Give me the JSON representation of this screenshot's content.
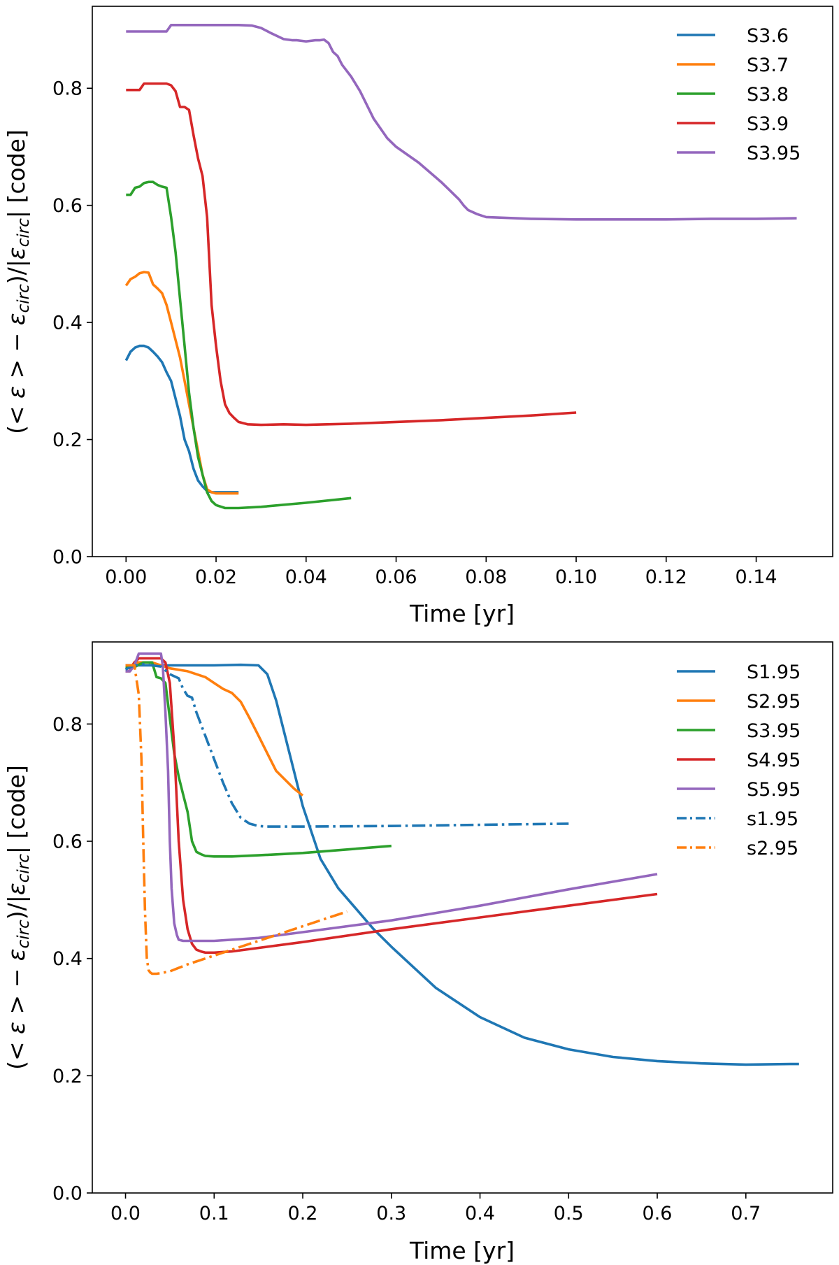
{
  "chart_data": [
    {
      "type": "line",
      "xlabel": "Time [yr]",
      "ylabel": "(< ε > − ε_circ)/|ε_circ| [code]",
      "ylabel_parts": [
        "(< ",
        "ε",
        " > − ",
        "ε",
        "circ",
        ")/|",
        "ε",
        "circ",
        "| [code]"
      ],
      "xlim": [
        -0.0075,
        0.157
      ],
      "ylim": [
        0.0,
        0.94
      ],
      "xticks": [
        0.0,
        0.02,
        0.04,
        0.06,
        0.08,
        0.1,
        0.12,
        0.14
      ],
      "xtick_labels": [
        "0.00",
        "0.02",
        "0.04",
        "0.06",
        "0.08",
        "0.10",
        "0.12",
        "0.14"
      ],
      "yticks": [
        0.0,
        0.2,
        0.4,
        0.6,
        0.8
      ],
      "ytick_labels": [
        "0.0",
        "0.2",
        "0.4",
        "0.6",
        "0.8"
      ],
      "legend_position": "top-right",
      "grid": false,
      "series": [
        {
          "name": "S3.6",
          "color": "#1f77b4",
          "dash": "solid",
          "x": [
            0.0,
            0.001,
            0.002,
            0.003,
            0.004,
            0.005,
            0.006,
            0.007,
            0.008,
            0.009,
            0.01,
            0.011,
            0.012,
            0.013,
            0.014,
            0.015,
            0.016,
            0.017,
            0.018,
            0.019,
            0.02,
            0.022,
            0.025
          ],
          "y": [
            0.335,
            0.35,
            0.357,
            0.36,
            0.36,
            0.357,
            0.35,
            0.342,
            0.332,
            0.315,
            0.3,
            0.27,
            0.24,
            0.2,
            0.18,
            0.15,
            0.13,
            0.12,
            0.112,
            0.11,
            0.11,
            0.11,
            0.11
          ]
        },
        {
          "name": "S3.7",
          "color": "#ff7f0e",
          "dash": "solid",
          "x": [
            0.0,
            0.001,
            0.002,
            0.003,
            0.004,
            0.005,
            0.006,
            0.007,
            0.008,
            0.009,
            0.01,
            0.011,
            0.012,
            0.013,
            0.014,
            0.015,
            0.016,
            0.017,
            0.018,
            0.019,
            0.02,
            0.022,
            0.025
          ],
          "y": [
            0.463,
            0.474,
            0.478,
            0.484,
            0.486,
            0.485,
            0.465,
            0.458,
            0.45,
            0.43,
            0.4,
            0.37,
            0.34,
            0.3,
            0.26,
            0.22,
            0.18,
            0.14,
            0.115,
            0.11,
            0.108,
            0.108,
            0.108
          ]
        },
        {
          "name": "S3.8",
          "color": "#2ca02c",
          "dash": "solid",
          "x": [
            0.0,
            0.001,
            0.002,
            0.003,
            0.004,
            0.005,
            0.006,
            0.007,
            0.008,
            0.009,
            0.01,
            0.011,
            0.012,
            0.013,
            0.014,
            0.015,
            0.016,
            0.017,
            0.018,
            0.019,
            0.02,
            0.022,
            0.025,
            0.03,
            0.04,
            0.05
          ],
          "y": [
            0.618,
            0.618,
            0.63,
            0.632,
            0.638,
            0.64,
            0.64,
            0.635,
            0.632,
            0.63,
            0.58,
            0.52,
            0.44,
            0.36,
            0.28,
            0.22,
            0.17,
            0.14,
            0.11,
            0.095,
            0.088,
            0.083,
            0.083,
            0.085,
            0.092,
            0.1
          ]
        },
        {
          "name": "S3.9",
          "color": "#d62728",
          "dash": "solid",
          "x": [
            0.0,
            0.002,
            0.003,
            0.004,
            0.005,
            0.006,
            0.008,
            0.009,
            0.01,
            0.011,
            0.012,
            0.013,
            0.014,
            0.015,
            0.016,
            0.017,
            0.018,
            0.019,
            0.02,
            0.021,
            0.022,
            0.023,
            0.024,
            0.025,
            0.027,
            0.03,
            0.035,
            0.04,
            0.05,
            0.06,
            0.07,
            0.08,
            0.09,
            0.1
          ],
          "y": [
            0.797,
            0.797,
            0.797,
            0.808,
            0.808,
            0.808,
            0.808,
            0.808,
            0.805,
            0.795,
            0.768,
            0.768,
            0.763,
            0.72,
            0.68,
            0.65,
            0.58,
            0.43,
            0.36,
            0.3,
            0.26,
            0.245,
            0.237,
            0.23,
            0.226,
            0.225,
            0.226,
            0.225,
            0.227,
            0.23,
            0.233,
            0.237,
            0.241,
            0.246
          ]
        },
        {
          "name": "S3.95",
          "color": "#9467bd",
          "dash": "solid",
          "x": [
            0.0,
            0.005,
            0.009,
            0.01,
            0.015,
            0.02,
            0.025,
            0.028,
            0.03,
            0.032,
            0.035,
            0.037,
            0.038,
            0.04,
            0.042,
            0.043,
            0.044,
            0.045,
            0.046,
            0.047,
            0.048,
            0.05,
            0.052,
            0.055,
            0.058,
            0.06,
            0.065,
            0.07,
            0.072,
            0.074,
            0.075,
            0.076,
            0.078,
            0.08,
            0.09,
            0.1,
            0.11,
            0.12,
            0.13,
            0.14,
            0.149
          ],
          "y": [
            0.897,
            0.897,
            0.897,
            0.908,
            0.908,
            0.908,
            0.908,
            0.907,
            0.903,
            0.895,
            0.884,
            0.882,
            0.882,
            0.88,
            0.882,
            0.882,
            0.883,
            0.877,
            0.862,
            0.855,
            0.84,
            0.82,
            0.795,
            0.748,
            0.715,
            0.7,
            0.673,
            0.64,
            0.625,
            0.61,
            0.6,
            0.592,
            0.585,
            0.58,
            0.577,
            0.576,
            0.576,
            0.576,
            0.577,
            0.577,
            0.578
          ]
        }
      ]
    },
    {
      "type": "line",
      "xlabel": "Time [yr]",
      "ylabel": "(< ε > − ε_circ)/|ε_circ| [code]",
      "ylabel_parts": [
        "(< ",
        "ε",
        " > − ",
        "ε",
        "circ",
        ")/|",
        "ε",
        "circ",
        "| [code]"
      ],
      "xlim": [
        -0.0375,
        0.798
      ],
      "ylim": [
        0.0,
        0.94
      ],
      "xticks": [
        0.0,
        0.1,
        0.2,
        0.3,
        0.4,
        0.5,
        0.6,
        0.7
      ],
      "xtick_labels": [
        "0.0",
        "0.1",
        "0.2",
        "0.3",
        "0.4",
        "0.5",
        "0.6",
        "0.7"
      ],
      "yticks": [
        0.0,
        0.2,
        0.4,
        0.6,
        0.8
      ],
      "ytick_labels": [
        "0.0",
        "0.2",
        "0.4",
        "0.6",
        "0.8"
      ],
      "legend_position": "top-right",
      "grid": false,
      "series": [
        {
          "name": "S1.95",
          "color": "#1f77b4",
          "dash": "solid",
          "x": [
            0.0,
            0.01,
            0.02,
            0.05,
            0.1,
            0.13,
            0.15,
            0.16,
            0.17,
            0.18,
            0.19,
            0.2,
            0.22,
            0.24,
            0.26,
            0.28,
            0.3,
            0.35,
            0.4,
            0.45,
            0.5,
            0.55,
            0.6,
            0.65,
            0.7,
            0.75,
            0.76
          ],
          "y": [
            0.9,
            0.9,
            0.9,
            0.9,
            0.9,
            0.901,
            0.9,
            0.885,
            0.84,
            0.78,
            0.72,
            0.66,
            0.57,
            0.52,
            0.485,
            0.45,
            0.42,
            0.35,
            0.3,
            0.265,
            0.245,
            0.232,
            0.225,
            0.221,
            0.219,
            0.22,
            0.22
          ]
        },
        {
          "name": "S2.95",
          "color": "#ff7f0e",
          "dash": "solid",
          "x": [
            0.0,
            0.005,
            0.01,
            0.03,
            0.05,
            0.07,
            0.09,
            0.1,
            0.11,
            0.12,
            0.13,
            0.14,
            0.15,
            0.16,
            0.17,
            0.18,
            0.19,
            0.2
          ],
          "y": [
            0.895,
            0.895,
            0.905,
            0.905,
            0.895,
            0.89,
            0.88,
            0.87,
            0.86,
            0.853,
            0.838,
            0.81,
            0.78,
            0.75,
            0.72,
            0.705,
            0.69,
            0.678
          ]
        },
        {
          "name": "S3.95",
          "color": "#2ca02c",
          "dash": "solid",
          "x": [
            0.0,
            0.01,
            0.02,
            0.03,
            0.035,
            0.04,
            0.045,
            0.05,
            0.055,
            0.06,
            0.065,
            0.07,
            0.075,
            0.08,
            0.085,
            0.09,
            0.1,
            0.12,
            0.15,
            0.2,
            0.25,
            0.3
          ],
          "y": [
            0.897,
            0.897,
            0.905,
            0.905,
            0.88,
            0.878,
            0.87,
            0.81,
            0.75,
            0.71,
            0.68,
            0.65,
            0.6,
            0.582,
            0.578,
            0.575,
            0.574,
            0.574,
            0.576,
            0.58,
            0.586,
            0.592
          ]
        },
        {
          "name": "S4.95",
          "color": "#d62728",
          "dash": "solid",
          "x": [
            0.0,
            0.005,
            0.01,
            0.015,
            0.02,
            0.03,
            0.04,
            0.045,
            0.05,
            0.055,
            0.06,
            0.065,
            0.07,
            0.075,
            0.08,
            0.085,
            0.09,
            0.1,
            0.12,
            0.2,
            0.3,
            0.4,
            0.5,
            0.6
          ],
          "y": [
            0.89,
            0.89,
            0.905,
            0.912,
            0.912,
            0.912,
            0.912,
            0.905,
            0.87,
            0.76,
            0.6,
            0.5,
            0.45,
            0.425,
            0.415,
            0.412,
            0.41,
            0.41,
            0.412,
            0.428,
            0.45,
            0.47,
            0.49,
            0.51
          ]
        },
        {
          "name": "S5.95",
          "color": "#9467bd",
          "dash": "solid",
          "x": [
            0.0,
            0.005,
            0.01,
            0.015,
            0.02,
            0.03,
            0.04,
            0.042,
            0.045,
            0.048,
            0.05,
            0.052,
            0.055,
            0.058,
            0.06,
            0.065,
            0.07,
            0.1,
            0.15,
            0.2,
            0.3,
            0.4,
            0.5,
            0.6
          ],
          "y": [
            0.89,
            0.89,
            0.9,
            0.92,
            0.92,
            0.92,
            0.92,
            0.9,
            0.82,
            0.72,
            0.6,
            0.52,
            0.46,
            0.44,
            0.432,
            0.43,
            0.43,
            0.43,
            0.435,
            0.445,
            0.465,
            0.49,
            0.518,
            0.544
          ]
        },
        {
          "name": "s1.95",
          "color": "#1f77b4",
          "dash": "dashdot",
          "x": [
            0.0,
            0.01,
            0.02,
            0.03,
            0.04,
            0.05,
            0.06,
            0.065,
            0.07,
            0.075,
            0.08,
            0.09,
            0.1,
            0.11,
            0.12,
            0.13,
            0.14,
            0.15,
            0.16,
            0.17,
            0.2,
            0.3,
            0.4,
            0.5
          ],
          "y": [
            0.893,
            0.9,
            0.902,
            0.9,
            0.898,
            0.885,
            0.878,
            0.86,
            0.848,
            0.845,
            0.82,
            0.78,
            0.74,
            0.7,
            0.665,
            0.64,
            0.63,
            0.626,
            0.625,
            0.625,
            0.625,
            0.626,
            0.628,
            0.63
          ]
        },
        {
          "name": "s2.95",
          "color": "#ff7f0e",
          "dash": "dashdot",
          "x": [
            0.0,
            0.005,
            0.01,
            0.015,
            0.018,
            0.02,
            0.022,
            0.024,
            0.026,
            0.028,
            0.03,
            0.035,
            0.04,
            0.05,
            0.07,
            0.1,
            0.15,
            0.2,
            0.25
          ],
          "y": [
            0.9,
            0.9,
            0.9,
            0.85,
            0.74,
            0.6,
            0.48,
            0.4,
            0.38,
            0.376,
            0.374,
            0.374,
            0.375,
            0.378,
            0.39,
            0.405,
            0.43,
            0.455,
            0.48
          ]
        }
      ]
    }
  ]
}
